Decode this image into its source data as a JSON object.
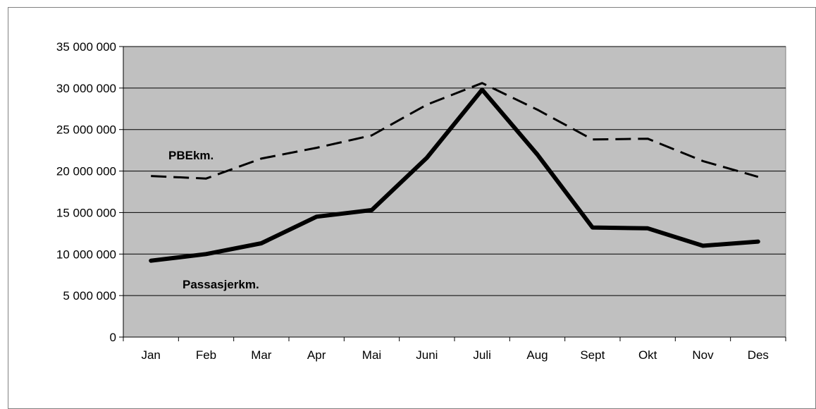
{
  "chart_data": {
    "type": "line",
    "title": "",
    "xlabel": "",
    "ylabel": "",
    "categories": [
      "Jan",
      "Feb",
      "Mar",
      "Apr",
      "Mai",
      "Juni",
      "Juli",
      "Aug",
      "Sept",
      "Okt",
      "Nov",
      "Des"
    ],
    "ylim": [
      0,
      35000000
    ],
    "yticks": [
      "0",
      "5 000 000",
      "10 000 000",
      "15 000 000",
      "20 000 000",
      "25 000 000",
      "30 000 000",
      "35 000 000"
    ],
    "grid": true,
    "legend": "none (series labelled directly on the plot)",
    "plot_background": "#c0c0c0",
    "series": [
      {
        "name": "PBEkm.",
        "style": "dashed",
        "color": "#000000",
        "values": [
          19400000,
          19100000,
          21500000,
          22800000,
          24300000,
          28000000,
          30600000,
          27400000,
          23800000,
          23900000,
          21200000,
          19300000
        ]
      },
      {
        "name": "Passasjerkm.",
        "style": "solid-thick",
        "color": "#000000",
        "values": [
          9200000,
          10000000,
          11300000,
          14500000,
          15300000,
          21600000,
          29800000,
          22000000,
          13200000,
          13100000,
          11000000,
          11500000
        ]
      }
    ]
  }
}
